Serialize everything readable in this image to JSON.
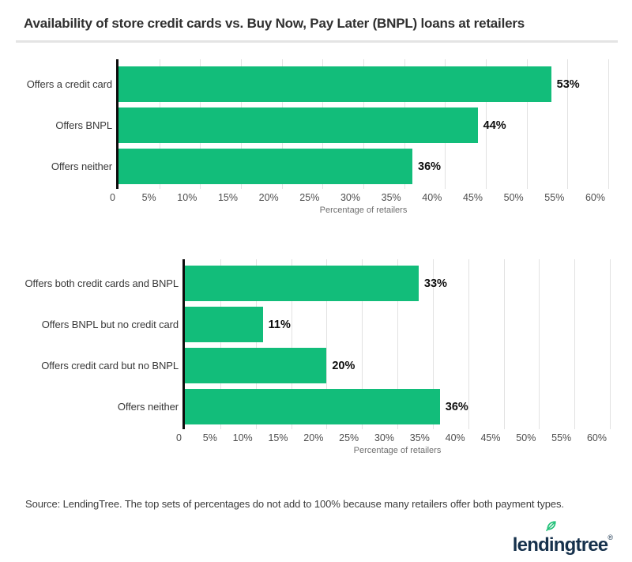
{
  "header": {
    "title": "Availability of store credit cards vs. Buy Now, Pay Later (BNPL) loans at retailers"
  },
  "chart_data": [
    {
      "type": "bar",
      "orientation": "horizontal",
      "categories": [
        "Offers a credit card",
        "Offers BNPL",
        "Offers neither"
      ],
      "values": [
        53,
        44,
        36
      ],
      "value_labels": [
        "53%",
        "44%",
        "36%"
      ],
      "xlabel": "Percentage of retailers",
      "xlim": [
        0,
        60
      ],
      "xticks": [
        0,
        5,
        10,
        15,
        20,
        25,
        30,
        35,
        40,
        45,
        50,
        55,
        60
      ],
      "xtick_labels": [
        "0",
        "5%",
        "10%",
        "15%",
        "20%",
        "25%",
        "30%",
        "35%",
        "40%",
        "45%",
        "50%",
        "55%",
        "60%"
      ],
      "grid": true,
      "legend": null,
      "bar_color": "#12bd7a"
    },
    {
      "type": "bar",
      "orientation": "horizontal",
      "categories": [
        "Offers both credit cards and BNPL",
        "Offers BNPL but no credit card",
        "Offers credit card but no BNPL",
        "Offers neither"
      ],
      "values": [
        33,
        11,
        20,
        36
      ],
      "value_labels": [
        "33%",
        "11%",
        "20%",
        "36%"
      ],
      "xlabel": "Percentage of retailers",
      "xlim": [
        0,
        60
      ],
      "xticks": [
        0,
        5,
        10,
        15,
        20,
        25,
        30,
        35,
        40,
        45,
        50,
        55,
        60
      ],
      "xtick_labels": [
        "0",
        "5%",
        "10%",
        "15%",
        "20%",
        "25%",
        "30%",
        "35%",
        "40%",
        "45%",
        "50%",
        "55%",
        "60%"
      ],
      "grid": true,
      "legend": null,
      "bar_color": "#12bd7a"
    }
  ],
  "footer": {
    "source_note": "Source: LendingTree. The top sets of percentages do not add to 100% because many retailers offer both payment types.",
    "logo_text": "lendingtree",
    "logo_registered": "®"
  },
  "colors": {
    "bar_green": "#12bd7a",
    "axis_black": "#0c0c0c",
    "gridline": "#e2e2e2",
    "divider": "#e4e4e4",
    "title_text": "#303030",
    "category_text": "#393939",
    "value_text": "#0d0d0d",
    "tick_text": "#4e4e4e",
    "axis_title_text": "#6f6f6f",
    "source_text": "#3c3c3c",
    "logo_navy": "#16314c",
    "logo_leaf_green": "#1fc077",
    "background": "#ffffff"
  }
}
